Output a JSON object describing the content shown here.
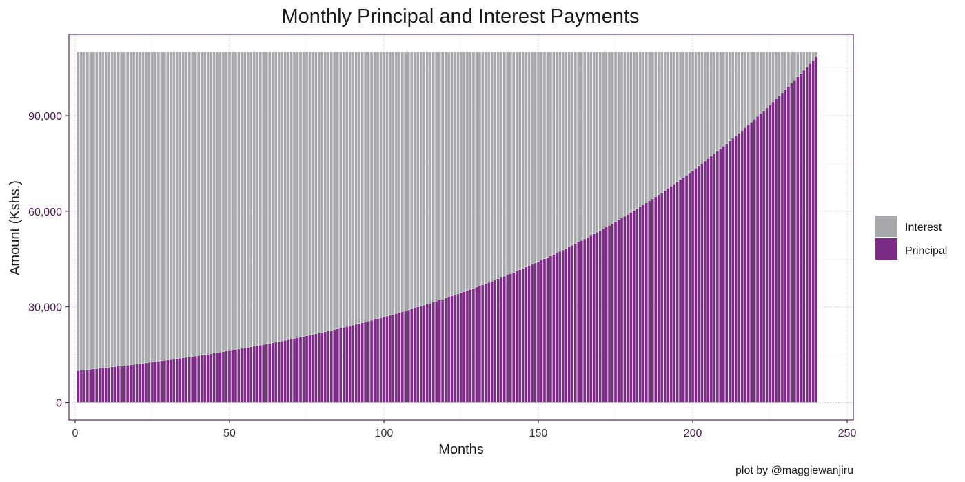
{
  "chart_data": {
    "type": "bar",
    "stacked": true,
    "title": "Monthly Principal and Interest Payments",
    "xlabel": "Months",
    "ylabel": "Amount (Kshs.)",
    "caption": "plot by @maggiewanjiru",
    "xlim": [
      -2,
      252
    ],
    "ylim": [
      -5500,
      115500
    ],
    "x_ticks": [
      0,
      50,
      100,
      150,
      200,
      250
    ],
    "x_tick_labels": [
      "0",
      "50",
      "100",
      "150",
      "200",
      "250"
    ],
    "y_ticks": [
      0,
      30000,
      60000,
      90000
    ],
    "y_tick_labels": [
      "0",
      "30,000",
      "60,000",
      "90,000"
    ],
    "grid": true,
    "legend_position": "right",
    "months": {
      "start": 1,
      "end": 240
    },
    "total_payment": 110000,
    "principal_first": 10000,
    "principal_last": 108500,
    "series": [
      {
        "name": "Interest",
        "color": "#a8a9ad",
        "value_rule": "total_payment minus principal"
      },
      {
        "name": "Principal",
        "color": "#7b2c85",
        "value_rule": "geometric growth from principal_first to principal_last"
      }
    ],
    "colors": {
      "frame": "#5b2a63",
      "bar_outline": "#ffffff"
    }
  }
}
